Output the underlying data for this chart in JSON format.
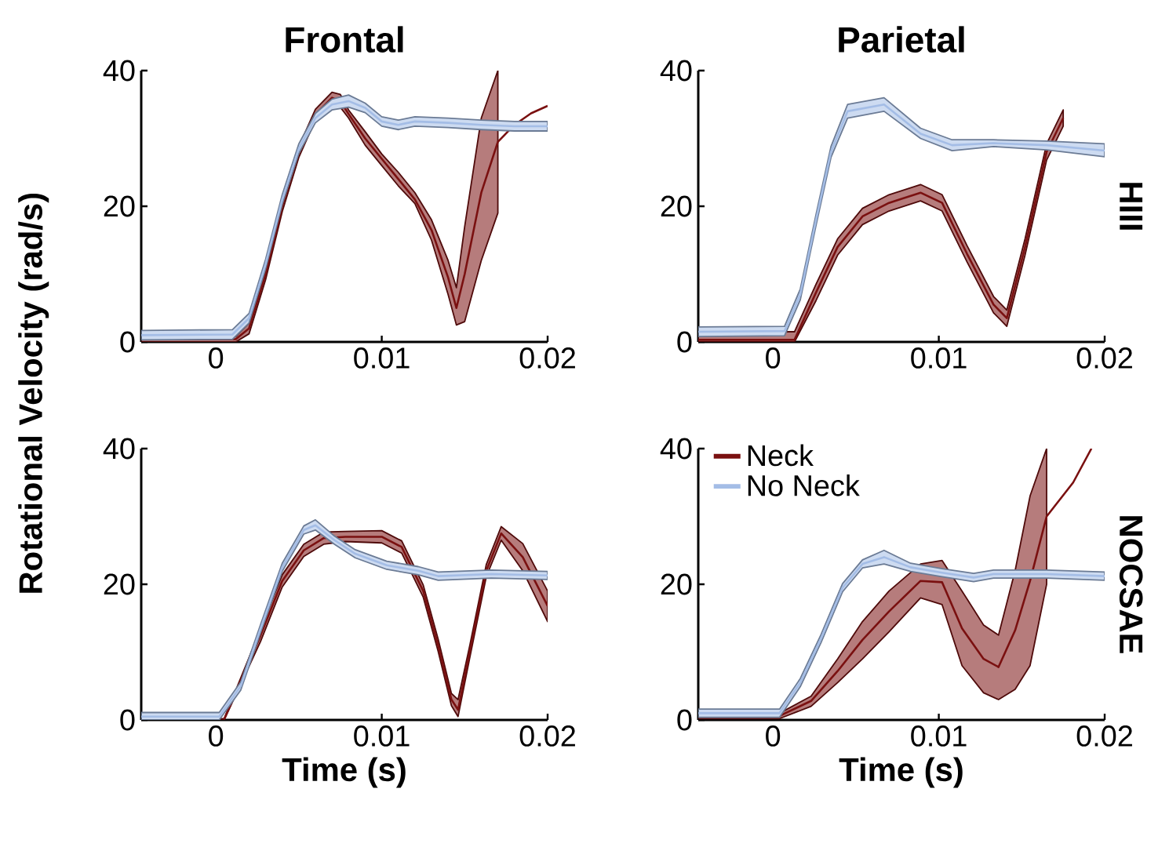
{
  "chart_data": [
    {
      "type": "line",
      "title": "Frontal",
      "xlim": [
        -0.0045,
        0.02
      ],
      "ylim": [
        0,
        40
      ],
      "xticks": [
        0,
        0.01,
        0.02
      ],
      "yticks": [
        0,
        20,
        40
      ],
      "ylabel": "Rotational Velocity (rad/s)",
      "series": [
        {
          "color": "#7a1010",
          "x": [
            -0.0045,
            0.0012,
            0.002,
            0.003,
            0.004,
            0.005,
            0.006,
            0.007,
            0.0075,
            0.008,
            0.009,
            0.01,
            0.011,
            0.012,
            0.013,
            0.014,
            0.0145,
            0.015,
            0.016,
            0.017,
            0.018,
            0.019,
            0.02
          ],
          "values": [
            0.4,
            0.4,
            2,
            10,
            20,
            28,
            33.5,
            36,
            35.5,
            33.6,
            30,
            27,
            24,
            21,
            16.5,
            9.5,
            5,
            10,
            22,
            29.5,
            32,
            33.7,
            34.8
          ],
          "lower": [
            0,
            0,
            1.2,
            9.2,
            19.2,
            27.2,
            32.7,
            35.2,
            34.6,
            33,
            29,
            26,
            23,
            20.4,
            15,
            7,
            2.5,
            3,
            12,
            19,
            null,
            null,
            null
          ],
          "upper": [
            0.8,
            0.8,
            2.8,
            10.8,
            20.8,
            28.8,
            34.3,
            36.8,
            36.5,
            34.2,
            31,
            27.7,
            25,
            22,
            18,
            12,
            8,
            17,
            33,
            40,
            null,
            null,
            null
          ]
        },
        {
          "color": "#a4bde6",
          "x": [
            -0.0045,
            0.001,
            0.002,
            0.003,
            0.004,
            0.005,
            0.006,
            0.007,
            0.008,
            0.009,
            0.01,
            0.011,
            0.012,
            0.014,
            0.016,
            0.018,
            0.02
          ],
          "values": [
            1,
            1.1,
            3.5,
            11.5,
            21,
            28.5,
            33,
            35,
            35.5,
            34.5,
            32.5,
            32,
            32.5,
            32.3,
            32,
            31.8,
            31.8
          ],
          "lower": [
            0.3,
            0.4,
            2.8,
            10.8,
            20.3,
            27.8,
            32.3,
            34.2,
            34.6,
            33.8,
            31.8,
            31.3,
            31.8,
            31.6,
            31.3,
            31.1,
            31.1
          ],
          "upper": [
            1.7,
            1.8,
            4.2,
            12.2,
            21.7,
            29.2,
            33.7,
            35.8,
            36.4,
            35.2,
            33.2,
            32.7,
            33.2,
            33,
            32.7,
            32.5,
            32.5
          ]
        }
      ]
    },
    {
      "type": "line",
      "title": "Parietal",
      "y2label": "HIII",
      "xlim": [
        -0.0045,
        0.02
      ],
      "ylim": [
        0,
        40
      ],
      "xticks": [
        0,
        0.01,
        0.02
      ],
      "yticks": [
        0,
        20,
        40
      ],
      "series": [
        {
          "color": "#7a1010",
          "x": [
            -0.0045,
            0.0013,
            0.0026,
            0.0039,
            0.0054,
            0.007,
            0.0089,
            0.0102,
            0.0117,
            0.0133,
            0.0141,
            0.0152,
            0.0165,
            0.0175
          ],
          "values": [
            0.3,
            0.3,
            7.3,
            14,
            18.5,
            20.5,
            22,
            20.5,
            13,
            5.5,
            3.5,
            14,
            28,
            33
          ],
          "lower": [
            0,
            0,
            6.1,
            12.8,
            17.3,
            19.3,
            20.8,
            19.3,
            11.8,
            4.3,
            2.3,
            12.8,
            26.8,
            31.8
          ],
          "upper": [
            1.5,
            1.5,
            8.5,
            15.2,
            19.7,
            21.7,
            23.2,
            21.7,
            14.2,
            6.7,
            4.7,
            15.2,
            29.2,
            34.2
          ]
        },
        {
          "color": "#a4bde6",
          "x": [
            -0.0045,
            0.0007,
            0.00165,
            0.0026,
            0.0035,
            0.0045,
            0.0067,
            0.0089,
            0.0108,
            0.0133,
            0.0165,
            0.02
          ],
          "values": [
            1.5,
            1.6,
            7,
            18,
            28,
            34,
            35,
            30.7,
            29,
            29.3,
            29,
            28.2
          ],
          "lower": [
            0.8,
            0.9,
            6.2,
            17.2,
            27.2,
            33,
            34,
            30,
            28.2,
            28.8,
            28.3,
            27.3
          ],
          "upper": [
            2.2,
            2.3,
            7.8,
            18.8,
            28.8,
            35,
            36,
            31.5,
            29.8,
            29.8,
            29.6,
            29.2
          ]
        }
      ]
    },
    {
      "type": "line",
      "xlabel": "Time (s)",
      "xlim": [
        -0.0045,
        0.02
      ],
      "ylim": [
        0,
        40
      ],
      "xticks": [
        0,
        0.01,
        0.02
      ],
      "yticks": [
        0,
        20,
        40
      ],
      "series": [
        {
          "color": "#7a1010",
          "x": [
            -0.0045,
            0.0005,
            0.0027,
            0.004,
            0.0053,
            0.0065,
            0.0078,
            0.01,
            0.0112,
            0.0125,
            0.0134,
            0.0142,
            0.0146,
            0.0153,
            0.0163,
            0.0172,
            0.0185,
            0.02
          ],
          "values": [
            null,
            0.1,
            12.5,
            20.5,
            25,
            26.8,
            27,
            27,
            25.5,
            19,
            11,
            3,
            1.5,
            10,
            22,
            27.5,
            24,
            16.8
          ],
          "lower": [
            0,
            0,
            11.6,
            19.6,
            24.1,
            25.9,
            26.3,
            26.1,
            24.6,
            18.1,
            10.1,
            2.1,
            0.5,
            9.1,
            21.1,
            26.5,
            22,
            14.5
          ],
          "upper": [
            0.2,
            0.2,
            13.4,
            21.4,
            25.9,
            27.7,
            27.8,
            27.9,
            26.4,
            19.9,
            11.9,
            3.9,
            3,
            10.9,
            22.9,
            28.5,
            26,
            19
          ]
        },
        {
          "color": "#a4bde6",
          "x": [
            -0.0045,
            0.0002,
            0.0015,
            0.0027,
            0.004,
            0.0053,
            0.006,
            0.00715,
            0.0084,
            0.0103,
            0.0122,
            0.0134,
            0.0166,
            0.02
          ],
          "values": [
            0.5,
            0.5,
            5,
            13.5,
            22.5,
            28,
            28.7,
            26.5,
            24.5,
            22.8,
            22,
            21.2,
            21.5,
            21.3
          ],
          "lower": [
            0,
            0,
            4.4,
            12.9,
            21.9,
            27.4,
            28,
            25.9,
            23.9,
            22.2,
            21.4,
            20.6,
            20.9,
            20.7
          ],
          "upper": [
            1.1,
            1.1,
            5.6,
            14.1,
            23.1,
            28.6,
            29.5,
            27.1,
            25.1,
            23.4,
            22.6,
            21.8,
            22.1,
            21.9
          ]
        }
      ]
    },
    {
      "type": "line",
      "xlabel": "Time (s)",
      "y2label": "NOCSAE",
      "legend": "top left",
      "xlim": [
        -0.0045,
        0.02
      ],
      "ylim": [
        0,
        40
      ],
      "xticks": [
        0,
        0.01,
        0.02
      ],
      "yticks": [
        0,
        20,
        40
      ],
      "series": [
        {
          "name": "Neck",
          "color": "#7a1010",
          "x": [
            -0.0045,
            0.0004,
            0.0023,
            0.0039,
            0.0054,
            0.007,
            0.0089,
            0.0102,
            0.0114,
            0.0127,
            0.0136,
            0.0146,
            0.0155,
            0.0165,
            0.0181,
            0.0192
          ],
          "values": [
            null,
            0.6,
            2.8,
            7.2,
            11.8,
            16,
            20.5,
            20.3,
            13.5,
            9,
            7.8,
            13.2,
            20.5,
            30,
            35,
            40
          ],
          "lower": [
            0.2,
            0.2,
            2,
            5.5,
            9,
            13,
            18,
            17,
            8,
            4,
            3,
            4.5,
            8,
            20,
            null,
            null
          ],
          "upper": [
            1,
            1,
            3.5,
            9,
            14.5,
            19,
            23,
            23.5,
            19,
            14,
            12.5,
            22,
            33,
            40,
            null,
            null
          ]
        },
        {
          "name": "No Neck",
          "color": "#a4bde6",
          "x": [
            -0.0045,
            0.0004,
            0.00165,
            0.0029,
            0.0042,
            0.0054,
            0.0067,
            0.0083,
            0.0102,
            0.0121,
            0.0133,
            0.0165,
            0.02
          ],
          "values": [
            1,
            1,
            5.5,
            12,
            19.5,
            23,
            24,
            22.5,
            21.7,
            21,
            21.5,
            21.5,
            21.2
          ],
          "lower": [
            0.4,
            0.4,
            4.9,
            11.4,
            18.9,
            22.4,
            23,
            21.9,
            21.1,
            20.4,
            20.9,
            20.9,
            20.6
          ],
          "upper": [
            1.6,
            1.6,
            6.1,
            12.6,
            20.1,
            23.6,
            25,
            23.1,
            22.3,
            21.6,
            22.1,
            22.1,
            21.8
          ]
        }
      ]
    }
  ]
}
